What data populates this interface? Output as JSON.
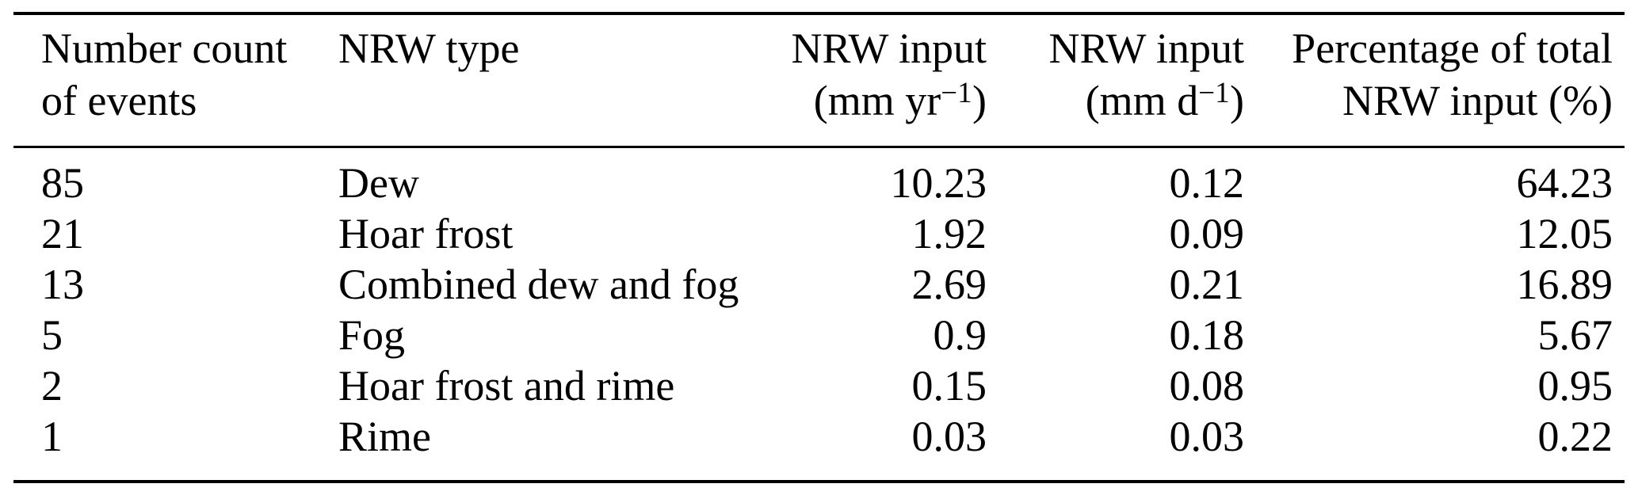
{
  "colors": {
    "text": "#000000",
    "background": "#ffffff",
    "rule": "#000000"
  },
  "table": {
    "headers": [
      {
        "line1": "Number count",
        "line2": "of events"
      },
      {
        "line1": "NRW type",
        "line2": ""
      },
      {
        "line1": "NRW input",
        "unit_pre": "(mm yr",
        "unit_sup": "−1",
        "unit_post": ")"
      },
      {
        "line1": "NRW input",
        "unit_pre": "(mm d",
        "unit_sup": "−1",
        "unit_post": ")"
      },
      {
        "line1": "Percentage of total",
        "line2": "NRW input (%)"
      }
    ],
    "rows": [
      [
        "85",
        "Dew",
        "10.23",
        "0.12",
        "64.23"
      ],
      [
        "21",
        "Hoar frost",
        "1.92",
        "0.09",
        "12.05"
      ],
      [
        "13",
        "Combined dew and fog",
        "2.69",
        "0.21",
        "16.89"
      ],
      [
        "5",
        "Fog",
        "0.9",
        "0.18",
        "5.67"
      ],
      [
        "2",
        "Hoar frost and rime",
        "0.15",
        "0.08",
        "0.95"
      ],
      [
        "1",
        "Rime",
        "0.03",
        "0.03",
        "0.22"
      ]
    ]
  },
  "chart_data": {
    "type": "table",
    "columns": [
      "Number count of events",
      "NRW type",
      "NRW input (mm yr−1)",
      "NRW input (mm d−1)",
      "Percentage of total NRW input (%)"
    ],
    "rows": [
      [
        85,
        "Dew",
        10.23,
        0.12,
        64.23
      ],
      [
        21,
        "Hoar frost",
        1.92,
        0.09,
        12.05
      ],
      [
        13,
        "Combined dew and fog",
        2.69,
        0.21,
        16.89
      ],
      [
        5,
        "Fog",
        0.9,
        0.18,
        5.67
      ],
      [
        2,
        "Hoar frost and rime",
        0.15,
        0.08,
        0.95
      ],
      [
        1,
        "Rime",
        0.03,
        0.03,
        0.22
      ]
    ]
  }
}
